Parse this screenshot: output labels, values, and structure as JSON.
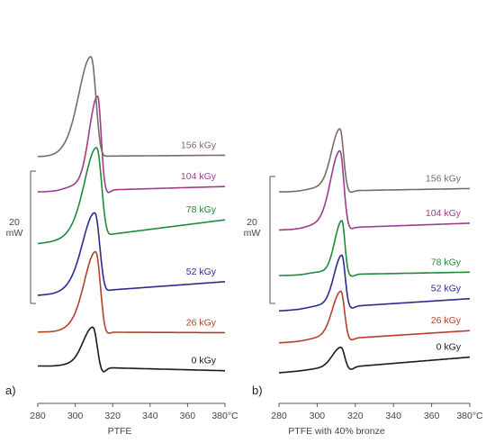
{
  "chart_data": [
    {
      "type": "line",
      "panel_label": "a)",
      "xlabel": "PTFE",
      "x_tick_labels": [
        "280",
        "300",
        "320",
        "340",
        "360",
        "380°C"
      ],
      "x_ticks": [
        280,
        300,
        320,
        340,
        360,
        380
      ],
      "xlim": [
        280,
        380
      ],
      "y_axis_values": false,
      "scale_bar_label": [
        "20",
        "mW"
      ],
      "scale_bar_value_mW": 20,
      "series": [
        {
          "name": "0 kGy",
          "color": "#1a1a1a",
          "offset": 0,
          "baseline_start": 1.0,
          "baseline_end": 0.3,
          "peak_x": 309.5,
          "peak_height": 5.9,
          "peak_width": 2.8,
          "tail_right": 0.8
        },
        {
          "name": "26 kGy",
          "color": "#b5402a",
          "offset": 5.0,
          "baseline_start": 1.0,
          "baseline_end": 0.9,
          "peak_x": 311.0,
          "peak_height": 11.8,
          "peak_width": 3.2,
          "tail_right": 0.6
        },
        {
          "name": "52 kGy",
          "color": "#2b2b8c",
          "offset": 11.4,
          "baseline_start": 0.0,
          "baseline_end": 2.0,
          "peak_x": 310.5,
          "peak_height": 11.5,
          "peak_width": 3.4,
          "tail_right": 0.5
        },
        {
          "name": "78 kGy",
          "color": "#1e8a3a",
          "offset": 19.0,
          "baseline_start": 0.0,
          "baseline_end": 3.5,
          "peak_x": 311.5,
          "peak_height": 13.0,
          "peak_width": 3.4,
          "tail_right": 0.5
        },
        {
          "name": "104 kGy",
          "color": "#9b3d8c",
          "offset": 26.6,
          "baseline_start": 0.0,
          "baseline_end": 0.8,
          "peak_x": 312.0,
          "peak_height": 13.8,
          "peak_width": 2.4,
          "tail_right": 0.5
        },
        {
          "name": "156 kGy",
          "color": "#7a6b66",
          "offset": 31.8,
          "baseline_start": 0.0,
          "baseline_end": 0.2,
          "peak_x": 308.5,
          "peak_height": 14.6,
          "peak_width": 3.4,
          "tail_right": 0.5
        }
      ]
    },
    {
      "type": "line",
      "panel_label": "b)",
      "xlabel": "PTFE with 40% bronze",
      "x_tick_labels": [
        "280",
        "300",
        "320",
        "340",
        "360",
        "380°C"
      ],
      "x_ticks": [
        280,
        300,
        320,
        340,
        360,
        380
      ],
      "xlim": [
        280,
        380
      ],
      "y_axis_values": false,
      "scale_bar_label": [
        "20",
        "mW"
      ],
      "scale_bar_value_mW": 20,
      "series": [
        {
          "name": "0 kGy",
          "color": "#1a1a1a",
          "offset": 0,
          "baseline_start": 0.0,
          "baseline_end": 2.3,
          "peak_x": 312.5,
          "peak_height": 3.0,
          "peak_width": 2.4,
          "tail_right": 0.4
        },
        {
          "name": "26 kGy",
          "color": "#b5402a",
          "offset": 4.4,
          "baseline_start": 0.0,
          "baseline_end": 1.8,
          "peak_x": 312.5,
          "peak_height": 7.0,
          "peak_width": 2.4,
          "tail_right": 0.3
        },
        {
          "name": "52 kGy",
          "color": "#2b2b8c",
          "offset": 9.1,
          "baseline_start": 0.0,
          "baseline_end": 1.8,
          "peak_x": 313.0,
          "peak_height": 7.6,
          "peak_width": 2.2,
          "tail_right": 0.3
        },
        {
          "name": "78 kGy",
          "color": "#1e8a3a",
          "offset": 14.3,
          "baseline_start": 0.0,
          "baseline_end": 0.5,
          "peak_x": 313.0,
          "peak_height": 7.9,
          "peak_width": 2.0,
          "tail_right": 0.3
        },
        {
          "name": "104 kGy",
          "color": "#9b3d8c",
          "offset": 21.0,
          "baseline_start": 0.0,
          "baseline_end": 1.0,
          "peak_x": 312.0,
          "peak_height": 11.3,
          "peak_width": 2.6,
          "tail_right": 0.3
        },
        {
          "name": "156 kGy",
          "color": "#7a6b66",
          "offset": 26.6,
          "baseline_start": 0.0,
          "baseline_end": 0.5,
          "peak_x": 312.0,
          "peak_height": 9.1,
          "peak_width": 2.4,
          "tail_right": 0.3
        }
      ]
    }
  ]
}
